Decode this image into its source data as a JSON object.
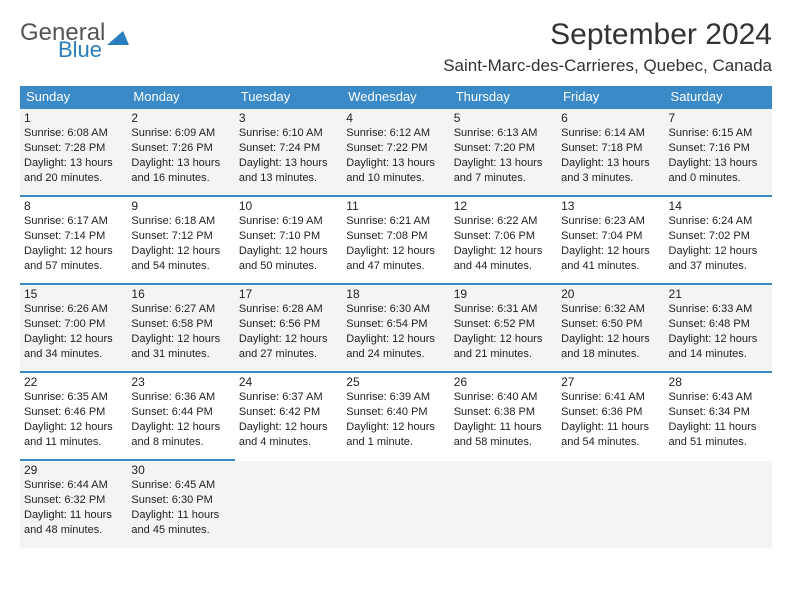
{
  "logo": {
    "word1": "General",
    "word2": "Blue"
  },
  "colors": {
    "header_bg": "#3a8ac8",
    "logo_blue": "#2a7ebd",
    "row_alt_bg": "#f4f4f4"
  },
  "title": "September 2024",
  "location": "Saint-Marc-des-Carrieres, Quebec, Canada",
  "weekdays": [
    "Sunday",
    "Monday",
    "Tuesday",
    "Wednesday",
    "Thursday",
    "Friday",
    "Saturday"
  ],
  "days": [
    {
      "n": 1,
      "sr": "6:08 AM",
      "ss": "7:28 PM",
      "dl": "13 hours and 20 minutes."
    },
    {
      "n": 2,
      "sr": "6:09 AM",
      "ss": "7:26 PM",
      "dl": "13 hours and 16 minutes."
    },
    {
      "n": 3,
      "sr": "6:10 AM",
      "ss": "7:24 PM",
      "dl": "13 hours and 13 minutes."
    },
    {
      "n": 4,
      "sr": "6:12 AM",
      "ss": "7:22 PM",
      "dl": "13 hours and 10 minutes."
    },
    {
      "n": 5,
      "sr": "6:13 AM",
      "ss": "7:20 PM",
      "dl": "13 hours and 7 minutes."
    },
    {
      "n": 6,
      "sr": "6:14 AM",
      "ss": "7:18 PM",
      "dl": "13 hours and 3 minutes."
    },
    {
      "n": 7,
      "sr": "6:15 AM",
      "ss": "7:16 PM",
      "dl": "13 hours and 0 minutes."
    },
    {
      "n": 8,
      "sr": "6:17 AM",
      "ss": "7:14 PM",
      "dl": "12 hours and 57 minutes."
    },
    {
      "n": 9,
      "sr": "6:18 AM",
      "ss": "7:12 PM",
      "dl": "12 hours and 54 minutes."
    },
    {
      "n": 10,
      "sr": "6:19 AM",
      "ss": "7:10 PM",
      "dl": "12 hours and 50 minutes."
    },
    {
      "n": 11,
      "sr": "6:21 AM",
      "ss": "7:08 PM",
      "dl": "12 hours and 47 minutes."
    },
    {
      "n": 12,
      "sr": "6:22 AM",
      "ss": "7:06 PM",
      "dl": "12 hours and 44 minutes."
    },
    {
      "n": 13,
      "sr": "6:23 AM",
      "ss": "7:04 PM",
      "dl": "12 hours and 41 minutes."
    },
    {
      "n": 14,
      "sr": "6:24 AM",
      "ss": "7:02 PM",
      "dl": "12 hours and 37 minutes."
    },
    {
      "n": 15,
      "sr": "6:26 AM",
      "ss": "7:00 PM",
      "dl": "12 hours and 34 minutes."
    },
    {
      "n": 16,
      "sr": "6:27 AM",
      "ss": "6:58 PM",
      "dl": "12 hours and 31 minutes."
    },
    {
      "n": 17,
      "sr": "6:28 AM",
      "ss": "6:56 PM",
      "dl": "12 hours and 27 minutes."
    },
    {
      "n": 18,
      "sr": "6:30 AM",
      "ss": "6:54 PM",
      "dl": "12 hours and 24 minutes."
    },
    {
      "n": 19,
      "sr": "6:31 AM",
      "ss": "6:52 PM",
      "dl": "12 hours and 21 minutes."
    },
    {
      "n": 20,
      "sr": "6:32 AM",
      "ss": "6:50 PM",
      "dl": "12 hours and 18 minutes."
    },
    {
      "n": 21,
      "sr": "6:33 AM",
      "ss": "6:48 PM",
      "dl": "12 hours and 14 minutes."
    },
    {
      "n": 22,
      "sr": "6:35 AM",
      "ss": "6:46 PM",
      "dl": "12 hours and 11 minutes."
    },
    {
      "n": 23,
      "sr": "6:36 AM",
      "ss": "6:44 PM",
      "dl": "12 hours and 8 minutes."
    },
    {
      "n": 24,
      "sr": "6:37 AM",
      "ss": "6:42 PM",
      "dl": "12 hours and 4 minutes."
    },
    {
      "n": 25,
      "sr": "6:39 AM",
      "ss": "6:40 PM",
      "dl": "12 hours and 1 minute."
    },
    {
      "n": 26,
      "sr": "6:40 AM",
      "ss": "6:38 PM",
      "dl": "11 hours and 58 minutes."
    },
    {
      "n": 27,
      "sr": "6:41 AM",
      "ss": "6:36 PM",
      "dl": "11 hours and 54 minutes."
    },
    {
      "n": 28,
      "sr": "6:43 AM",
      "ss": "6:34 PM",
      "dl": "11 hours and 51 minutes."
    },
    {
      "n": 29,
      "sr": "6:44 AM",
      "ss": "6:32 PM",
      "dl": "11 hours and 48 minutes."
    },
    {
      "n": 30,
      "sr": "6:45 AM",
      "ss": "6:30 PM",
      "dl": "11 hours and 45 minutes."
    }
  ],
  "labels": {
    "sunrise": "Sunrise:",
    "sunset": "Sunset:",
    "daylight": "Daylight:"
  },
  "layout": {
    "start_weekday": 0,
    "cols": 7,
    "rows": 5
  }
}
